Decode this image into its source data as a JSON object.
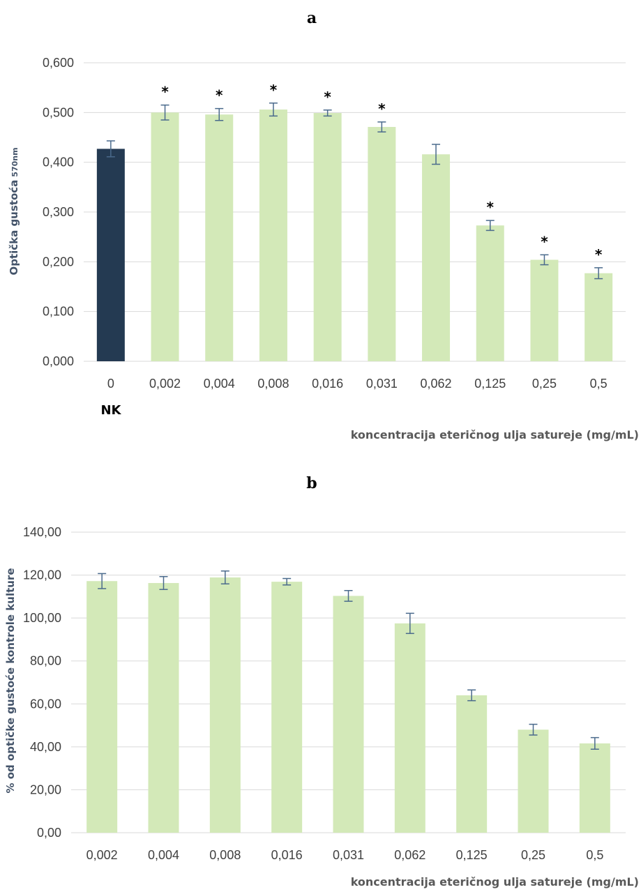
{
  "chart_data": [
    {
      "type": "bar",
      "panel_label": "a",
      "categories": [
        "0",
        "0,002",
        "0,004",
        "0,008",
        "0,016",
        "0,031",
        "0,062",
        "0,125",
        "0,25",
        "0,5"
      ],
      "values": [
        0.427,
        0.5,
        0.496,
        0.506,
        0.499,
        0.471,
        0.416,
        0.273,
        0.204,
        0.177
      ],
      "errors": [
        0.016,
        0.015,
        0.012,
        0.013,
        0.006,
        0.01,
        0.02,
        0.01,
        0.01,
        0.011
      ],
      "significant": [
        false,
        true,
        true,
        true,
        true,
        true,
        false,
        true,
        true,
        true
      ],
      "significance_marker": "*",
      "control_label": "NK",
      "ylabel": "Optička gustoća",
      "ylabel_sub": "570nm",
      "xlabel": "koncentracija eteričnog ulja satureje (mg/mL)",
      "ylim": [
        0,
        0.6
      ],
      "yticks": [
        "0,000",
        "0,100",
        "0,200",
        "0,300",
        "0,400",
        "0,500",
        "0,600"
      ],
      "grid": true,
      "colors": {
        "control": "#243a52",
        "treatment": "#d3e9b8",
        "error_bar": "#4a6a8c"
      }
    },
    {
      "type": "bar",
      "panel_label": "b",
      "categories": [
        "0,002",
        "0,004",
        "0,008",
        "0,016",
        "0,031",
        "0,062",
        "0,125",
        "0,25",
        "0,5"
      ],
      "values": [
        117.2,
        116.3,
        118.9,
        116.9,
        110.3,
        97.5,
        64.0,
        48.0,
        41.6
      ],
      "errors": [
        3.5,
        3.0,
        3.0,
        1.5,
        2.5,
        4.7,
        2.5,
        2.5,
        2.7
      ],
      "ylabel": "% od optičke gustoće kontrole kulture",
      "xlabel": "koncentracija eteričnog ulja satureje (mg/mL)",
      "ylim": [
        0,
        140
      ],
      "yticks": [
        "0,00",
        "20,00",
        "40,00",
        "60,00",
        "80,00",
        "100,00",
        "120,00",
        "140,00"
      ],
      "grid": true,
      "colors": {
        "treatment": "#d3e9b8",
        "error_bar": "#4a6a8c"
      }
    }
  ]
}
